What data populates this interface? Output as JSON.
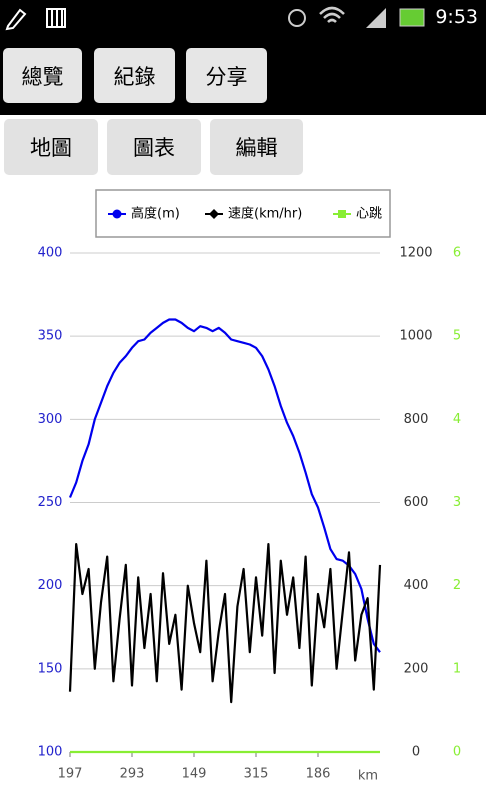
{
  "status_bar": {
    "time": "9:53"
  },
  "buttons": [
    [
      "總覽",
      "紀錄",
      "分享"
    ],
    [
      "地圖",
      "圖表",
      "編輯"
    ]
  ],
  "chart_data": {
    "type": "line",
    "x_label": "km",
    "x": [
      0,
      2,
      4,
      6,
      8,
      10,
      12,
      14,
      16,
      18,
      20,
      22,
      24,
      26,
      28,
      30,
      32,
      34,
      36,
      38,
      40,
      42,
      44,
      46,
      48,
      50,
      52,
      54,
      56,
      58,
      60,
      62,
      64,
      66,
      68,
      70,
      72,
      74,
      76,
      78,
      80,
      82,
      84,
      86,
      88,
      90,
      92,
      94,
      96,
      98,
      100
    ],
    "xlim": [
      0,
      100
    ],
    "xticks": [
      {
        "value": 0,
        "label": "197"
      },
      {
        "value": 20,
        "label": "293"
      },
      {
        "value": 40,
        "label": "149"
      },
      {
        "value": 60,
        "label": "315"
      },
      {
        "value": 80,
        "label": "186"
      }
    ],
    "ylim": [
      100,
      400
    ],
    "yticks": [
      100,
      150,
      200,
      250,
      300,
      350,
      400
    ],
    "y2lim": [
      0,
      1200
    ],
    "y2ticks": [
      0,
      200,
      400,
      600,
      800,
      1000,
      1200
    ],
    "y3lim": [
      0,
      6
    ],
    "y3ticks": [
      0,
      1,
      2,
      3,
      4,
      5,
      6
    ],
    "grid": true,
    "series": [
      {
        "name": "高度(m)",
        "color": "#0000ee",
        "axis": "y",
        "marker": "circle",
        "values": [
          253,
          262,
          275,
          285,
          300,
          310,
          320,
          328,
          334,
          338,
          343,
          347,
          348,
          352,
          355,
          358,
          360,
          360,
          358,
          355,
          353,
          356,
          355,
          353,
          355,
          352,
          348,
          347,
          346,
          345,
          343,
          338,
          330,
          320,
          308,
          298,
          290,
          280,
          268,
          255,
          247,
          235,
          222,
          216,
          215,
          212,
          207,
          198,
          180,
          165,
          160
        ]
      },
      {
        "name": "速度(km/hr)",
        "color": "#000000",
        "axis": "y2",
        "marker": "diamond",
        "values": [
          145,
          500,
          380,
          440,
          200,
          360,
          470,
          170,
          320,
          450,
          160,
          420,
          250,
          380,
          170,
          430,
          260,
          330,
          150,
          400,
          310,
          240,
          460,
          170,
          290,
          380,
          120,
          350,
          440,
          240,
          420,
          280,
          500,
          190,
          460,
          330,
          420,
          250,
          470,
          160,
          380,
          300,
          440,
          200,
          340,
          480,
          220,
          330,
          370,
          150,
          450
        ]
      },
      {
        "name": "心跳",
        "color": "#88ee33",
        "axis": "y3",
        "marker": "square",
        "values": [
          0,
          0,
          0,
          0,
          0,
          0,
          0,
          0,
          0,
          0,
          0,
          0,
          0,
          0,
          0,
          0,
          0,
          0,
          0,
          0,
          0,
          0,
          0,
          0,
          0,
          0,
          0,
          0,
          0,
          0,
          0,
          0,
          0,
          0,
          0,
          0,
          0,
          0,
          0,
          0,
          0,
          0,
          0,
          0,
          0,
          0,
          0,
          0,
          0,
          0,
          0
        ]
      }
    ]
  }
}
